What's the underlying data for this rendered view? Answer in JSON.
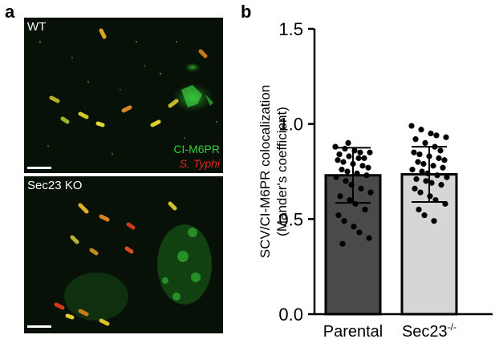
{
  "figure": {
    "panel_a_label": "a",
    "panel_b_label": "b"
  },
  "panel_a": {
    "top_image": {
      "label": "WT",
      "legend": [
        "CI-M6PR",
        "S. Typhi"
      ],
      "legend_colors": [
        "#2ed12e",
        "#e0261c"
      ]
    },
    "bottom_image": {
      "label": "Sec23 KO"
    }
  },
  "chart_data": {
    "type": "bar",
    "categories": [
      "Parental",
      "Sec23"
    ],
    "category_superscript": [
      "",
      "-/-"
    ],
    "values": [
      0.73,
      0.735
    ],
    "error": [
      0.145,
      0.145
    ],
    "bar_colors": [
      "#4a4a4a",
      "#d6d6d6"
    ],
    "ylabel_lines": [
      "SCV/CI-M6PR colocalization",
      "(Mander's coefficient)"
    ],
    "ylim": [
      0,
      1.5
    ],
    "yticks": [
      "0.0",
      "0.5",
      "1.0",
      "1.5"
    ],
    "points": [
      [
        0.88,
        0.87,
        0.86,
        0.85,
        0.85,
        0.84,
        0.83,
        0.82,
        0.82,
        0.81,
        0.8,
        0.79,
        0.78,
        0.77,
        0.76,
        0.75,
        0.74,
        0.73,
        0.72,
        0.7,
        0.68,
        0.66,
        0.64,
        0.62,
        0.6,
        0.58,
        0.55,
        0.52,
        0.49,
        0.46,
        0.43,
        0.4,
        0.37,
        0.9
      ],
      [
        0.99,
        0.97,
        0.95,
        0.94,
        0.93,
        0.92,
        0.9,
        0.88,
        0.86,
        0.85,
        0.84,
        0.83,
        0.82,
        0.81,
        0.8,
        0.79,
        0.78,
        0.77,
        0.76,
        0.75,
        0.74,
        0.73,
        0.72,
        0.71,
        0.7,
        0.69,
        0.68,
        0.66,
        0.64,
        0.62,
        0.6,
        0.58,
        0.55,
        0.52,
        0.49
      ]
    ]
  }
}
